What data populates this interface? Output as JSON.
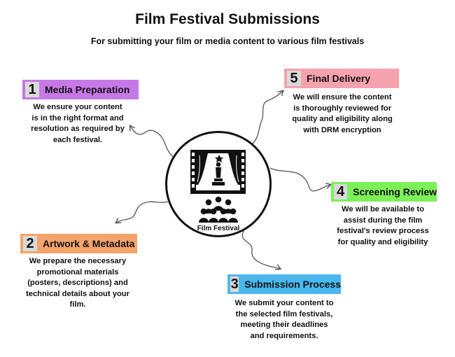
{
  "title": "Film Festival Submissions",
  "subtitle": "For submitting your film or media content to various film festivals",
  "hub": {
    "label": "Film Festival",
    "icon": "film-award-audience-icon"
  },
  "steps": [
    {
      "number": "1",
      "label": "Media Preparation",
      "color": "#c678e6",
      "lines": [
        "We ensure your content",
        "is in the right format and",
        "resolution as required by",
        "each festival."
      ]
    },
    {
      "number": "2",
      "label": "Artwork & Metadata",
      "color": "#f5a36b",
      "lines": [
        "We prepare the necessary",
        "promotional materials",
        "(posters, descriptions) and",
        "technical details about your",
        "film."
      ]
    },
    {
      "number": "3",
      "label": "Submission Process",
      "color": "#4ab8ef",
      "lines": [
        "We submit your content to",
        "the selected film festivals,",
        "meeting their deadlines",
        "and requirements."
      ]
    },
    {
      "number": "4",
      "label": "Screening Review",
      "color": "#7df058",
      "lines": [
        "We will be available to",
        "assist during the film",
        "festival's review process",
        "for quality and eligibility"
      ]
    },
    {
      "number": "5",
      "label": "Final Delivery",
      "color": "#f5a2ae",
      "lines": [
        "We will ensure the content",
        "is thoroughly reviewed for",
        "quality and eligibility along",
        "with DRM encryption"
      ]
    }
  ]
}
